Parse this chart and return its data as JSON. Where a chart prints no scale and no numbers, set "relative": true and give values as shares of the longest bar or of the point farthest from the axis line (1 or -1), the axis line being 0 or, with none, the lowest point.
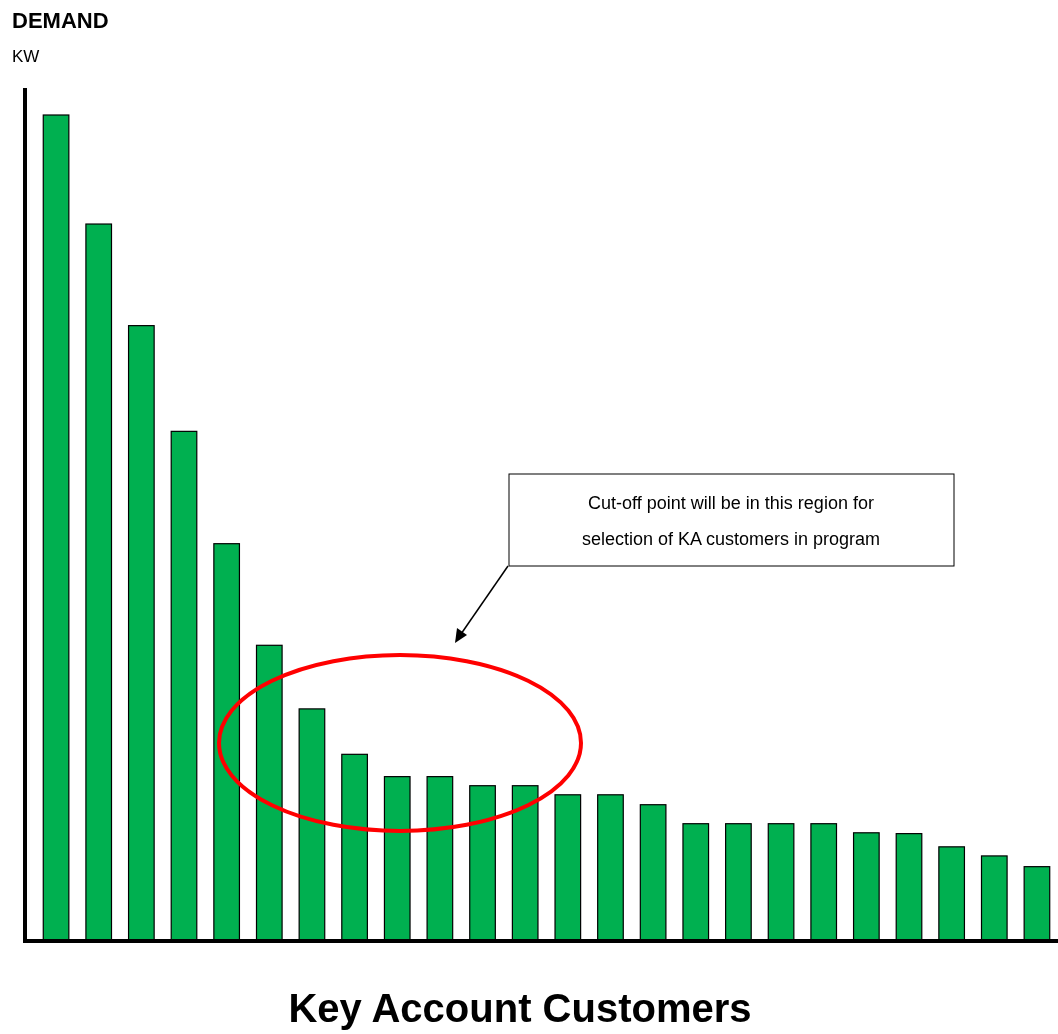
{
  "chart_data": {
    "type": "bar",
    "title": "DEMAND",
    "subtitle": "KW",
    "xlabel": "Key Account Customers",
    "relative": true,
    "color": "#00b050",
    "categories": [
      null,
      null,
      null,
      null,
      null,
      null,
      null,
      null,
      null,
      null,
      null,
      null,
      null,
      null,
      null,
      null,
      null,
      null,
      null,
      null,
      null,
      null,
      null,
      null
    ],
    "values": [
      1.0,
      0.868,
      0.745,
      0.617,
      0.481,
      0.358,
      0.281,
      0.226,
      0.199,
      0.199,
      0.188,
      0.188,
      0.177,
      0.177,
      0.165,
      0.142,
      0.142,
      0.142,
      0.142,
      0.131,
      0.13,
      0.114,
      0.103,
      0.09
    ],
    "annotations": [
      "Cut-off point will be in this region for selection of KA customers in program"
    ]
  }
}
